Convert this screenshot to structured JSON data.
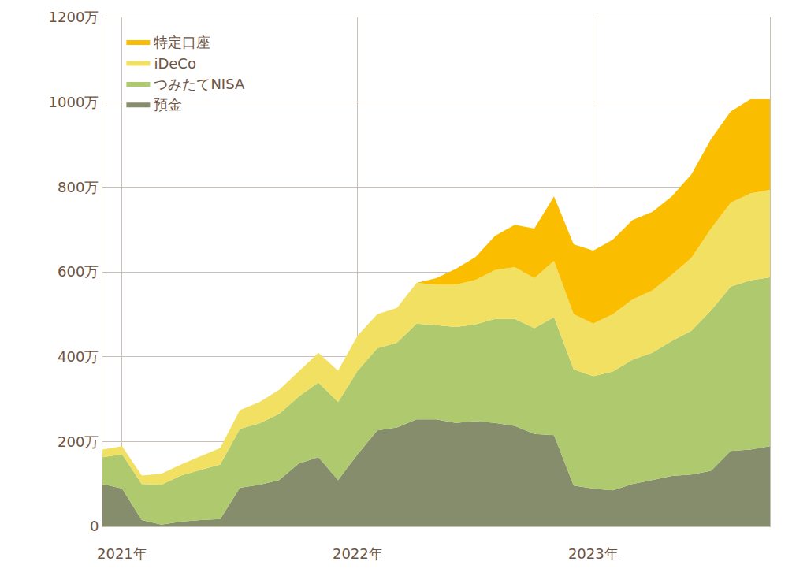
{
  "chart_data": {
    "type": "area",
    "stacked": true,
    "categories": [
      null,
      "2021年",
      null,
      null,
      null,
      null,
      null,
      null,
      null,
      null,
      null,
      null,
      null,
      "2022年",
      null,
      null,
      null,
      null,
      null,
      null,
      null,
      null,
      null,
      null,
      null,
      "2023年",
      null,
      null,
      null,
      null,
      null,
      null,
      null,
      null,
      null
    ],
    "series": [
      {
        "name": "預金",
        "color": "#858d6c",
        "values": [
          100,
          89,
          15,
          4,
          11,
          15,
          17,
          91,
          98,
          109,
          148,
          163,
          109,
          170,
          226,
          233,
          252,
          252,
          244,
          248,
          244,
          237,
          218,
          215,
          96,
          89,
          85,
          100,
          109,
          119,
          122,
          131,
          178,
          181,
          189
        ]
      },
      {
        "name": "つみたてNISA",
        "color": "#afc96f",
        "values": [
          63,
          81,
          85,
          94,
          109,
          118,
          129,
          139,
          145,
          156,
          158,
          176,
          184,
          197,
          194,
          200,
          226,
          222,
          226,
          228,
          245,
          252,
          249,
          278,
          274,
          265,
          280,
          293,
          300,
          318,
          339,
          378,
          387,
          399,
          398
        ]
      },
      {
        "name": "iDeCo",
        "color": "#f2e063",
        "values": [
          18,
          19,
          20,
          26,
          26,
          32,
          39,
          44,
          50,
          57,
          59,
          70,
          74,
          83,
          80,
          82,
          96,
          96,
          100,
          105,
          115,
          122,
          118,
          133,
          130,
          124,
          135,
          142,
          147,
          156,
          172,
          193,
          198,
          205,
          206
        ]
      },
      {
        "name": "特定口座",
        "color": "#fbbd00",
        "values": [
          0,
          0,
          0,
          0,
          0,
          0,
          0,
          0,
          0,
          0,
          0,
          0,
          0,
          0,
          0,
          0,
          0,
          15,
          37,
          54,
          81,
          100,
          117,
          152,
          165,
          172,
          176,
          187,
          185,
          185,
          197,
          211,
          215,
          222,
          214
        ]
      }
    ],
    "ylim": [
      0,
      1200
    ],
    "yticks": [
      0,
      {
        "value": 200,
        "label": "200万"
      },
      {
        "value": 400,
        "label": "400万"
      },
      {
        "value": 600,
        "label": "600万"
      },
      {
        "value": 800,
        "label": "800万"
      },
      {
        "value": 1000,
        "label": "1000万"
      },
      {
        "value": 1200,
        "label": "1200万"
      }
    ],
    "grid": true,
    "legend": "upper left"
  }
}
